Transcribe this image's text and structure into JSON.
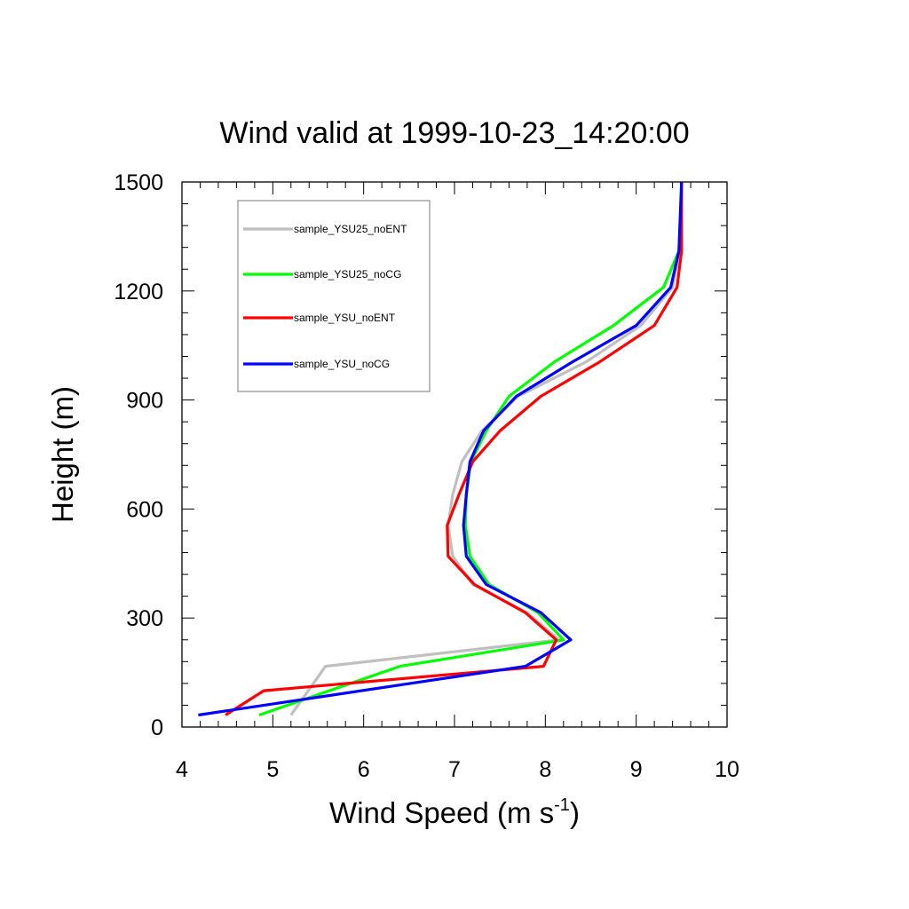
{
  "chart_data": {
    "type": "line",
    "title": "Wind valid at 1999-10-23_14:20:00",
    "xlabel": "Wind Speed (m s",
    "xlabel_sup": "-1",
    "xlabel_close": ")",
    "ylabel": "Height (m)",
    "xlim": [
      4,
      10
    ],
    "ylim": [
      0,
      1500
    ],
    "x_ticks": [
      4,
      5,
      6,
      7,
      8,
      9,
      10
    ],
    "y_ticks": [
      0,
      300,
      600,
      900,
      1200,
      1500
    ],
    "x_tick_labels": [
      "4",
      "5",
      "6",
      "7",
      "8",
      "9",
      "10"
    ],
    "y_tick_labels": [
      "0",
      "300",
      "600",
      "900",
      "1200",
      "1500"
    ],
    "legend_position": "top-left",
    "grid": false,
    "series": [
      {
        "name": "sample_YSU25_noENT",
        "color": "#bfbfbf",
        "points": [
          [
            5.2,
            33
          ],
          [
            5.58,
            167
          ],
          [
            8.15,
            240
          ],
          [
            7.8,
            315
          ],
          [
            7.2,
            392
          ],
          [
            6.98,
            470
          ],
          [
            6.93,
            555
          ],
          [
            6.98,
            640
          ],
          [
            7.08,
            730
          ],
          [
            7.3,
            815
          ],
          [
            7.7,
            910
          ],
          [
            8.45,
            1005
          ],
          [
            9.05,
            1105
          ],
          [
            9.4,
            1210
          ],
          [
            9.48,
            1310
          ],
          [
            9.5,
            1500
          ]
        ]
      },
      {
        "name": "sample_YSU25_noCG",
        "color": "#00ff00",
        "points": [
          [
            4.85,
            33
          ],
          [
            6.4,
            167
          ],
          [
            8.2,
            240
          ],
          [
            7.92,
            315
          ],
          [
            7.38,
            392
          ],
          [
            7.17,
            470
          ],
          [
            7.12,
            555
          ],
          [
            7.13,
            640
          ],
          [
            7.18,
            730
          ],
          [
            7.35,
            815
          ],
          [
            7.6,
            910
          ],
          [
            8.1,
            1005
          ],
          [
            8.75,
            1105
          ],
          [
            9.3,
            1210
          ],
          [
            9.47,
            1310
          ],
          [
            9.5,
            1500
          ]
        ]
      },
      {
        "name": "sample_YSU_noENT",
        "color": "#ff0000",
        "points": [
          [
            4.48,
            33
          ],
          [
            4.9,
            100
          ],
          [
            7.98,
            167
          ],
          [
            8.12,
            240
          ],
          [
            7.78,
            315
          ],
          [
            7.22,
            392
          ],
          [
            6.93,
            470
          ],
          [
            6.92,
            555
          ],
          [
            7.05,
            640
          ],
          [
            7.2,
            730
          ],
          [
            7.5,
            815
          ],
          [
            7.95,
            910
          ],
          [
            8.6,
            1005
          ],
          [
            9.2,
            1105
          ],
          [
            9.45,
            1210
          ],
          [
            9.5,
            1310
          ],
          [
            9.5,
            1500
          ]
        ]
      },
      {
        "name": "sample_YSU_noCG",
        "color": "#0000ff",
        "points": [
          [
            4.18,
            33
          ],
          [
            7.78,
            167
          ],
          [
            8.28,
            240
          ],
          [
            7.95,
            315
          ],
          [
            7.35,
            392
          ],
          [
            7.13,
            470
          ],
          [
            7.1,
            555
          ],
          [
            7.13,
            640
          ],
          [
            7.17,
            730
          ],
          [
            7.32,
            815
          ],
          [
            7.68,
            910
          ],
          [
            8.3,
            1005
          ],
          [
            9.0,
            1105
          ],
          [
            9.38,
            1210
          ],
          [
            9.47,
            1310
          ],
          [
            9.5,
            1500
          ]
        ]
      }
    ]
  }
}
